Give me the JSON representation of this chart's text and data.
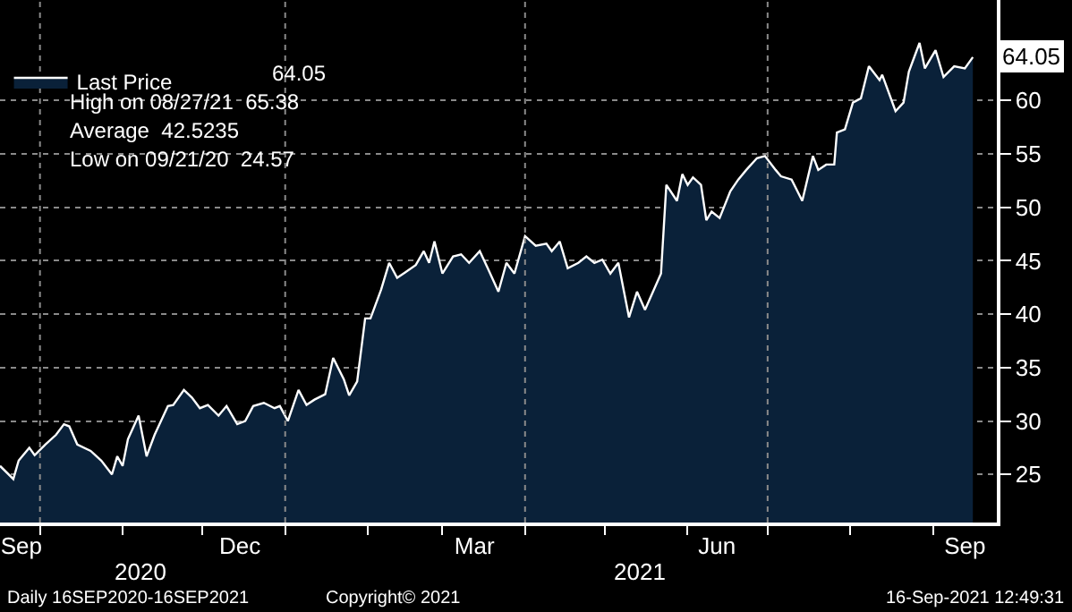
{
  "chart_data": {
    "type": "area",
    "x": [
      "2020-09-16",
      "2020-09-21",
      "2020-09-23",
      "2020-09-27",
      "2020-09-29",
      "2020-10-03",
      "2020-10-07",
      "2020-10-10",
      "2020-10-12",
      "2020-10-15",
      "2020-10-20",
      "2020-10-24",
      "2020-10-28",
      "2020-10-30",
      "2020-11-01",
      "2020-11-03",
      "2020-11-07",
      "2020-11-10",
      "2020-11-13",
      "2020-11-18",
      "2020-11-20",
      "2020-11-24",
      "2020-11-27",
      "2020-11-30",
      "2020-12-03",
      "2020-12-07",
      "2020-12-10",
      "2020-12-14",
      "2020-12-17",
      "2020-12-20",
      "2020-12-24",
      "2020-12-28",
      "2020-12-30",
      "2021-01-02",
      "2021-01-06",
      "2021-01-09",
      "2021-01-12",
      "2021-01-16",
      "2021-01-19",
      "2021-01-23",
      "2021-01-25",
      "2021-01-28",
      "2021-01-31",
      "2021-02-02",
      "2021-02-06",
      "2021-02-09",
      "2021-02-12",
      "2021-02-15",
      "2021-02-19",
      "2021-02-22",
      "2021-02-24",
      "2021-02-26",
      "2021-03-01",
      "2021-03-05",
      "2021-03-08",
      "2021-03-11",
      "2021-03-15",
      "2021-03-18",
      "2021-03-22",
      "2021-03-25",
      "2021-03-28",
      "2021-04-01",
      "2021-04-05",
      "2021-04-09",
      "2021-04-11",
      "2021-04-14",
      "2021-04-17",
      "2021-04-21",
      "2021-04-24",
      "2021-04-27",
      "2021-04-30",
      "2021-05-03",
      "2021-05-06",
      "2021-05-10",
      "2021-05-13",
      "2021-05-16",
      "2021-05-22",
      "2021-05-24",
      "2021-05-28",
      "2021-05-30",
      "2021-06-01",
      "2021-06-03",
      "2021-06-06",
      "2021-06-08",
      "2021-06-10",
      "2021-06-13",
      "2021-06-17",
      "2021-06-20",
      "2021-06-23",
      "2021-06-27",
      "2021-06-30",
      "2021-07-04",
      "2021-07-06",
      "2021-07-10",
      "2021-07-14",
      "2021-07-18",
      "2021-07-20",
      "2021-07-23",
      "2021-07-26",
      "2021-07-27",
      "2021-07-30",
      "2021-08-02",
      "2021-08-05",
      "2021-08-08",
      "2021-08-12",
      "2021-08-13",
      "2021-08-18",
      "2021-08-21",
      "2021-08-23",
      "2021-08-27",
      "2021-08-29",
      "2021-09-02",
      "2021-09-05",
      "2021-09-09",
      "2021-09-13",
      "2021-09-16"
    ],
    "series": [
      {
        "name": "Last Price",
        "color": "#0a2139",
        "values": [
          25.8,
          24.57,
          26.3,
          27.5,
          26.8,
          27.8,
          28.7,
          29.7,
          29.5,
          27.8,
          27.2,
          26.3,
          25.0,
          26.7,
          25.8,
          28.3,
          30.5,
          26.7,
          28.7,
          31.4,
          31.5,
          32.9,
          32.2,
          31.2,
          31.5,
          30.5,
          31.4,
          29.7,
          30.0,
          31.4,
          31.7,
          31.2,
          31.4,
          30.0,
          32.9,
          31.5,
          32.0,
          32.5,
          35.9,
          33.9,
          32.4,
          33.7,
          39.6,
          39.6,
          42.3,
          44.8,
          43.4,
          43.9,
          44.6,
          45.9,
          44.8,
          46.8,
          43.8,
          45.4,
          45.6,
          44.8,
          45.9,
          44.3,
          42.1,
          44.8,
          43.8,
          47.3,
          46.4,
          46.6,
          45.9,
          46.8,
          44.3,
          44.8,
          45.4,
          44.8,
          45.1,
          43.8,
          44.8,
          39.7,
          42.1,
          40.4,
          43.8,
          52.1,
          50.6,
          53.1,
          52.1,
          52.8,
          52.1,
          48.8,
          49.6,
          49.0,
          51.5,
          52.6,
          53.5,
          54.6,
          54.8,
          53.5,
          52.9,
          52.6,
          50.6,
          54.8,
          53.5,
          54.0,
          54.0,
          57.0,
          57.3,
          59.8,
          60.2,
          63.2,
          61.9,
          62.4,
          59.0,
          59.8,
          62.7,
          65.38,
          63.0,
          64.7,
          62.2,
          63.2,
          63.0,
          64.05
        ]
      }
    ],
    "xlim": [
      "2020-09-16",
      "2021-09-25"
    ],
    "xticks": [
      {
        "value": "2020-09-24",
        "label": "Sep"
      },
      {
        "value": "2020-12-15",
        "label": "Dec"
      },
      {
        "value": "2021-03-13",
        "label": "Mar"
      },
      {
        "value": "2021-06-12",
        "label": "Jun"
      },
      {
        "value": "2021-09-13",
        "label": "Sep"
      }
    ],
    "ylim": [
      20.5,
      69.4
    ],
    "yticks": [
      25,
      30,
      35,
      40,
      45,
      50,
      55,
      60
    ],
    "grid": true,
    "legend": "top left",
    "annotations": [
      {
        "text": "64.05",
        "x": "2021-09-16",
        "y": 64.05
      },
      "2020",
      "2021",
      "64.05",
      "High on 08/27/21  65.38",
      "Average  42.5235",
      "Low on 09/21/20  24.57",
      "Daily 16SEP2020-16SEP2021",
      "Copyright© 2021",
      "16-Sep-2021 12:49:31"
    ]
  }
}
